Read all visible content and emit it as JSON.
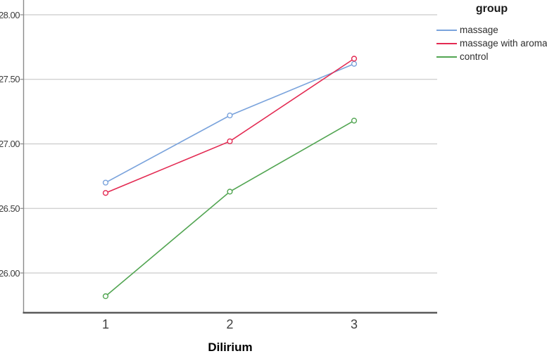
{
  "chart_data": {
    "type": "line",
    "title": "",
    "xlabel": "Dilirium",
    "ylabel": "",
    "legend_title": "group",
    "legend_position": "right",
    "grid": "horizontal",
    "marker": "open-circle",
    "x": [
      1,
      2,
      3
    ],
    "xticks": [
      "1",
      "2",
      "3"
    ],
    "yticks": [
      "28.00",
      "27.50",
      "27.00",
      "26.50",
      "26.00"
    ],
    "ylim": [
      25.7,
      28.15
    ],
    "series": [
      {
        "name": "massage",
        "color": "#7AA3DC",
        "values": [
          26.7,
          27.22,
          27.62
        ]
      },
      {
        "name": "massage with aroma",
        "color": "#E32A52",
        "values": [
          26.62,
          27.02,
          27.66
        ]
      },
      {
        "name": "control",
        "color": "#52A552",
        "values": [
          25.82,
          26.63,
          27.18
        ]
      }
    ]
  }
}
